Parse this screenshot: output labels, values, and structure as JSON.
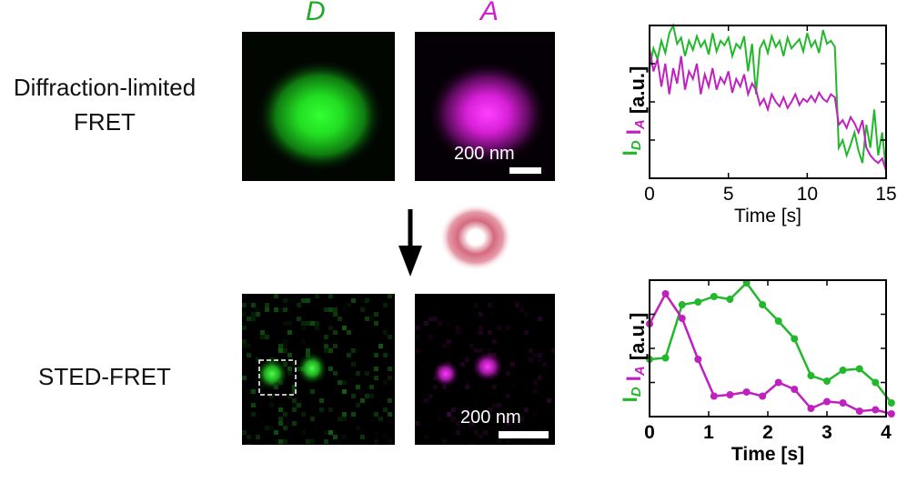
{
  "rows": {
    "diffraction_line1": "Diffraction-limited",
    "diffraction_line2": "FRET",
    "sted": "STED-FRET"
  },
  "channels": {
    "donor": "D",
    "acceptor": "A"
  },
  "scale_bar_label": "200 nm",
  "colors": {
    "donor": "#22b82b",
    "acceptor": "#c020c0",
    "donut": "#d46a7e"
  },
  "chart_data": [
    {
      "type": "line",
      "xlabel": "Time [s]",
      "ylabel_unit": "[a.u.]",
      "ylabel_donor": "I",
      "ylabel_donor_sub": "D",
      "ylabel_acceptor": "I",
      "ylabel_acceptor_sub": "A",
      "xlim": [
        0,
        15
      ],
      "ylim": [
        0,
        1
      ],
      "xticks": [
        "0",
        "5",
        "10",
        "15"
      ],
      "markers": false,
      "series": [
        {
          "channel": "donor",
          "x": [
            0,
            0.25,
            0.5,
            0.75,
            1,
            1.25,
            1.5,
            1.75,
            2,
            2.25,
            2.5,
            2.75,
            3,
            3.25,
            3.5,
            3.75,
            4,
            4.25,
            4.5,
            4.75,
            5,
            5.25,
            5.5,
            5.75,
            6,
            6.25,
            6.5,
            6.75,
            7,
            7.25,
            7.5,
            7.75,
            8,
            8.25,
            8.5,
            8.75,
            9,
            9.25,
            9.5,
            9.75,
            10,
            10.25,
            10.5,
            10.75,
            11,
            11.25,
            11.5,
            11.75,
            12,
            12.25,
            12.5,
            12.75,
            13,
            13.25,
            13.5,
            13.75,
            14,
            14.25,
            14.5,
            14.75,
            15
          ],
          "values": [
            0.72,
            0.85,
            0.78,
            0.9,
            0.82,
            0.95,
            1.0,
            0.88,
            0.92,
            0.8,
            0.9,
            0.84,
            0.93,
            0.86,
            0.9,
            0.81,
            0.95,
            0.83,
            0.9,
            0.87,
            0.92,
            0.8,
            0.88,
            0.85,
            0.93,
            0.7,
            0.88,
            0.55,
            0.85,
            0.9,
            0.82,
            0.93,
            0.86,
            0.9,
            0.8,
            0.92,
            0.85,
            0.88,
            0.91,
            0.83,
            0.95,
            0.86,
            0.9,
            0.82,
            0.97,
            0.88,
            0.9,
            0.86,
            0.2,
            0.25,
            0.15,
            0.22,
            0.3,
            0.18,
            0.1,
            0.35,
            0.2,
            0.45,
            0.15,
            0.3,
            0.05
          ]
        },
        {
          "channel": "acceptor",
          "x": [
            0,
            0.25,
            0.5,
            0.75,
            1,
            1.25,
            1.5,
            1.75,
            2,
            2.25,
            2.5,
            2.75,
            3,
            3.25,
            3.5,
            3.75,
            4,
            4.25,
            4.5,
            4.75,
            5,
            5.25,
            5.5,
            5.75,
            6,
            6.25,
            6.5,
            6.75,
            7,
            7.25,
            7.5,
            7.75,
            8,
            8.25,
            8.5,
            8.75,
            9,
            9.25,
            9.5,
            9.75,
            10,
            10.25,
            10.5,
            10.75,
            11,
            11.25,
            11.5,
            11.75,
            12,
            12.25,
            12.5,
            12.75,
            13,
            13.25,
            13.5,
            13.75,
            14,
            14.25,
            14.5,
            14.75,
            15
          ],
          "values": [
            0.85,
            0.7,
            0.78,
            0.6,
            0.75,
            0.55,
            0.72,
            0.62,
            0.8,
            0.58,
            0.7,
            0.65,
            0.75,
            0.55,
            0.68,
            0.6,
            0.72,
            0.58,
            0.66,
            0.62,
            0.7,
            0.56,
            0.65,
            0.6,
            0.68,
            0.55,
            0.62,
            0.58,
            0.48,
            0.52,
            0.45,
            0.55,
            0.5,
            0.47,
            0.53,
            0.46,
            0.5,
            0.55,
            0.48,
            0.52,
            0.5,
            0.54,
            0.5,
            0.56,
            0.52,
            0.5,
            0.55,
            0.53,
            0.35,
            0.38,
            0.33,
            0.4,
            0.36,
            0.3,
            0.38,
            0.2,
            0.15,
            0.12,
            0.1,
            0.13,
            0.05
          ]
        }
      ]
    },
    {
      "type": "line",
      "xlabel": "Time [s]",
      "ylabel_unit": "[a.u.]",
      "ylabel_donor": "I",
      "ylabel_donor_sub": "D",
      "ylabel_acceptor": "I",
      "ylabel_acceptor_sub": "A",
      "xlim": [
        0,
        4
      ],
      "ylim": [
        0,
        1
      ],
      "xticks": [
        "0",
        "1",
        "2",
        "3",
        "4"
      ],
      "markers": true,
      "series": [
        {
          "channel": "donor",
          "x": [
            0,
            0.27,
            0.55,
            0.82,
            1.09,
            1.36,
            1.64,
            1.91,
            2.18,
            2.45,
            2.73,
            3.0,
            3.27,
            3.55,
            3.82,
            4.09
          ],
          "values": [
            0.42,
            0.43,
            0.82,
            0.84,
            0.88,
            0.86,
            0.98,
            0.82,
            0.7,
            0.57,
            0.3,
            0.26,
            0.34,
            0.35,
            0.25,
            0.1
          ]
        },
        {
          "channel": "acceptor",
          "x": [
            0,
            0.27,
            0.55,
            0.82,
            1.09,
            1.36,
            1.64,
            1.91,
            2.18,
            2.45,
            2.73,
            3.0,
            3.27,
            3.55,
            3.82,
            4.09
          ],
          "values": [
            0.68,
            0.9,
            0.72,
            0.42,
            0.15,
            0.16,
            0.18,
            0.15,
            0.25,
            0.2,
            0.06,
            0.11,
            0.1,
            0.04,
            0.05,
            0.02
          ]
        }
      ]
    }
  ]
}
